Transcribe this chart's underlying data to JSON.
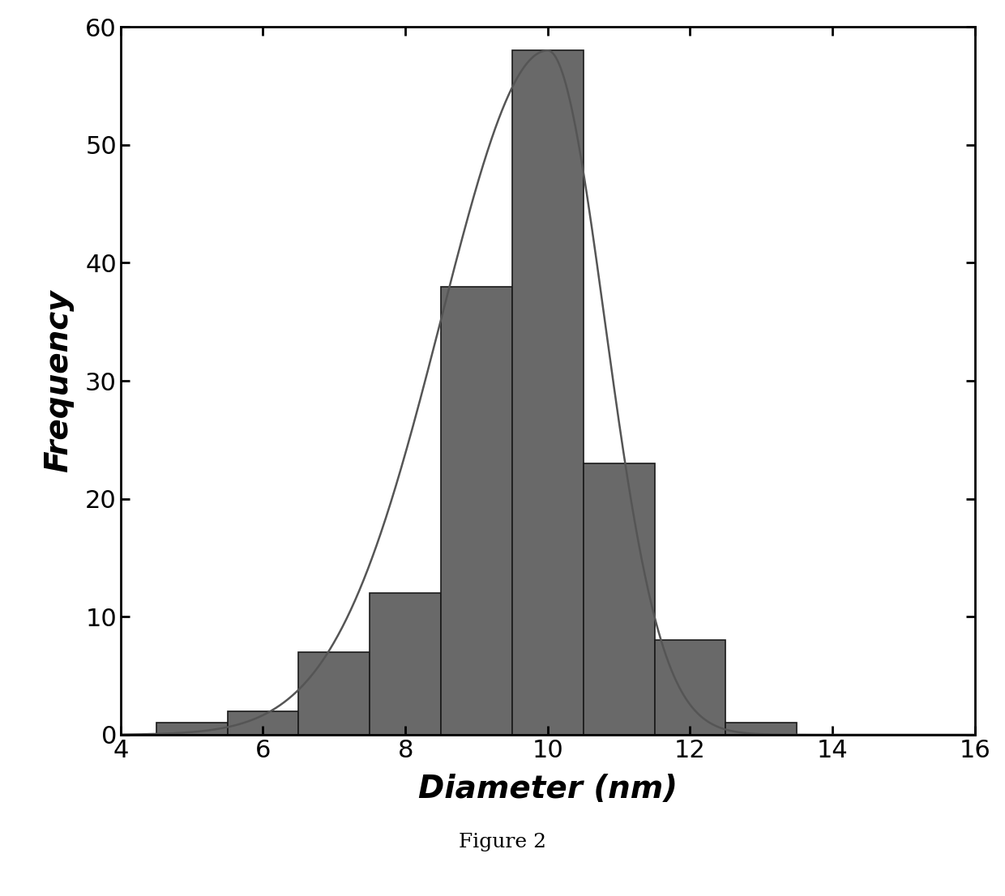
{
  "bar_centers": [
    5,
    6,
    7,
    8,
    9,
    10,
    11,
    12,
    13
  ],
  "bar_heights": [
    1,
    2,
    7,
    12,
    38,
    58,
    23,
    8,
    1
  ],
  "bar_width": 1.0,
  "bar_color": "#696969",
  "bar_edgecolor": "#1a1a1a",
  "xlim": [
    4,
    16
  ],
  "ylim": [
    0,
    60
  ],
  "xticks": [
    4,
    6,
    8,
    10,
    12,
    14,
    16
  ],
  "yticks": [
    0,
    10,
    20,
    30,
    40,
    50,
    60
  ],
  "xlabel": "Diameter (nm)",
  "ylabel": "Frequency",
  "figure_caption": "Figure 2",
  "curve_color": "#555555",
  "curve_linewidth": 1.8,
  "background_color": "#ffffff",
  "figsize": [
    12.4,
    11.06
  ],
  "dpi": 100,
  "tick_labelsize": 22,
  "xlabel_fontsize": 28,
  "ylabel_fontsize": 28,
  "caption_fontsize": 18,
  "axis_linewidth": 2.0
}
